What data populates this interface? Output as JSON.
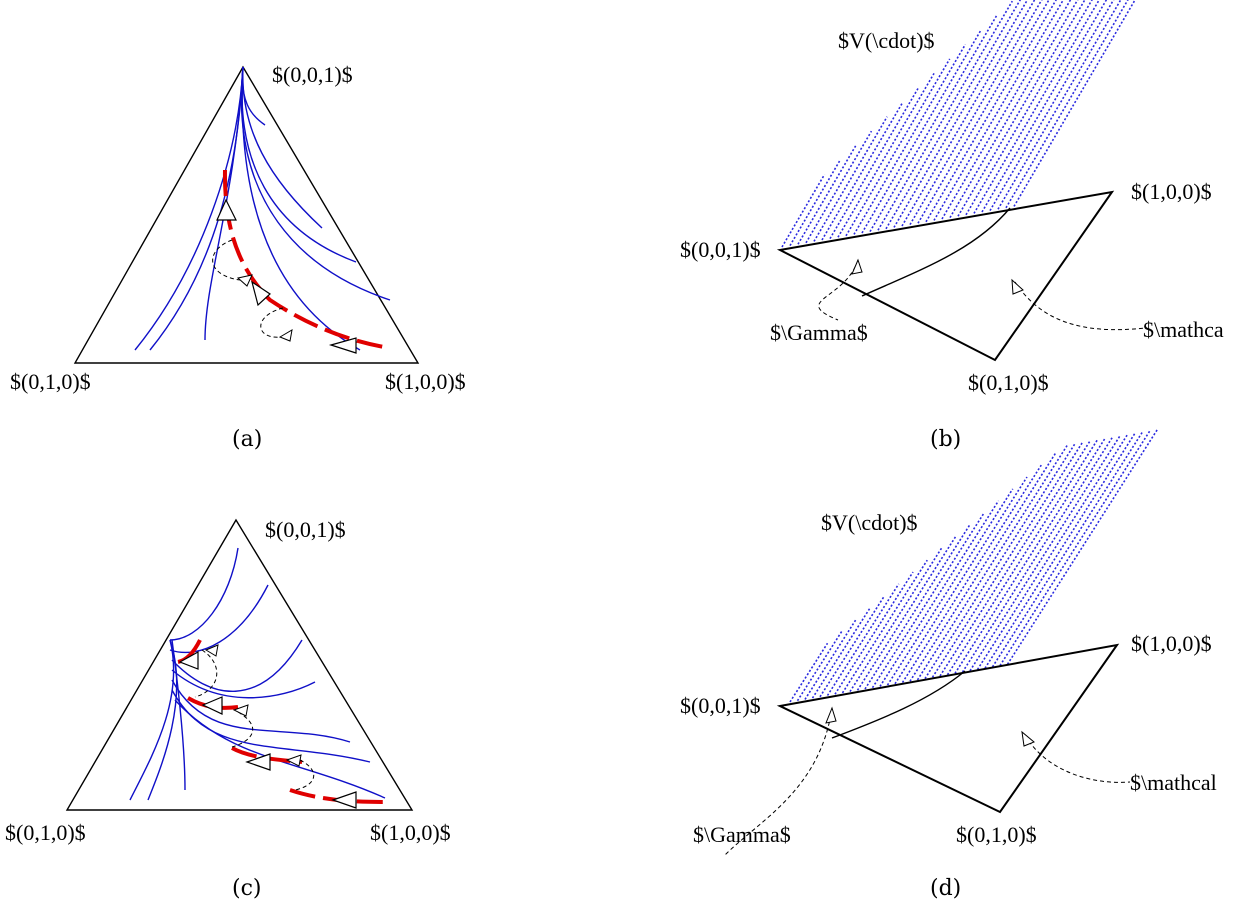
{
  "panel_a": {
    "top_label": "$(0,0,1)$",
    "left_label": "$(0,1,0)$",
    "right_label": "$(1,0,0)$",
    "caption": "(a)"
  },
  "panel_b": {
    "v_label": "$V(\\cdot)$",
    "top_right_label": "$(1,0,0)$",
    "left_label": "$(0,0,1)$",
    "bottom_label": "$(0,1,0)$",
    "gamma_label": "$\\Gamma$",
    "mathcal_label": "$\\mathca",
    "caption": "(b)"
  },
  "panel_c": {
    "top_label": "$(0,0,1)$",
    "left_label": "$(0,1,0)$",
    "right_label": "$(1,0,0)$",
    "caption": "(c)"
  },
  "panel_d": {
    "v_label": "$V(\\cdot)$",
    "top_right_label": "$(1,0,0)$",
    "left_label": "$(0,0,1)$",
    "bottom_label": "$(0,1,0)$",
    "gamma_label": "$\\Gamma$",
    "mathcal_label": "$\\mathcal",
    "caption": "(d)"
  }
}
